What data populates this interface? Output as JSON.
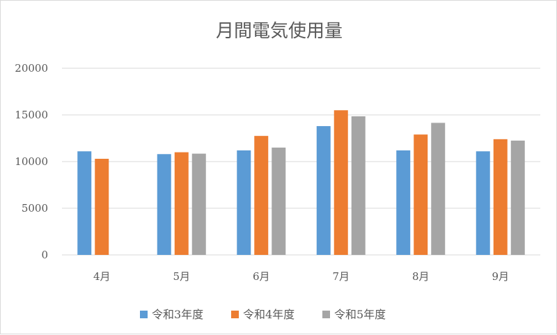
{
  "chart_data": {
    "type": "bar",
    "title": "月間電気使用量",
    "xlabel": "",
    "ylabel": "",
    "categories": [
      "4月",
      "5月",
      "6月",
      "7月",
      "8月",
      "9月"
    ],
    "ylim": [
      0,
      20000
    ],
    "yticks": [
      0,
      5000,
      10000,
      15000,
      20000
    ],
    "grid": true,
    "legend_position": "bottom",
    "series": [
      {
        "name": "令和3年度",
        "color": "#5b9bd5",
        "values": [
          11100,
          10800,
          11200,
          13800,
          11200,
          11100
        ]
      },
      {
        "name": "令和4年度",
        "color": "#ed7d31",
        "values": [
          10300,
          11000,
          12750,
          15500,
          12900,
          12400
        ]
      },
      {
        "name": "令和5年度",
        "color": "#a5a5a5",
        "values": [
          null,
          10850,
          11500,
          14850,
          14150,
          12250
        ]
      }
    ]
  }
}
